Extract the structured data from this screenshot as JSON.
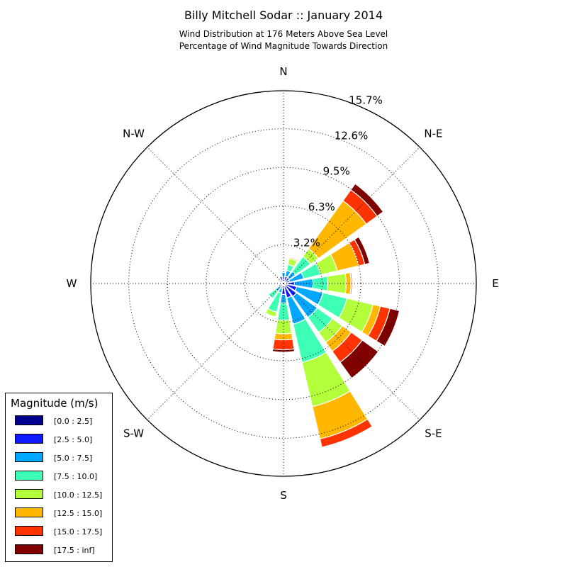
{
  "title": "Billy Mitchell Sodar :: January 2014",
  "subtitle_line1": "Wind Distribution at 176 Meters Above Sea Level",
  "subtitle_line2": "Percentage of Wind Magnitude Towards Direction",
  "legend": {
    "title": "Magnitude (m/s)",
    "items": [
      {
        "label": "[0.0 : 2.5]",
        "color": "#00008f"
      },
      {
        "label": "[2.5 : 5.0]",
        "color": "#0f1aff"
      },
      {
        "label": "[5.0 : 7.5]",
        "color": "#00a8ff"
      },
      {
        "label": "[7.5 : 10.0]",
        "color": "#3dffb5"
      },
      {
        "label": "[10.0 : 12.5]",
        "color": "#b3ff3b"
      },
      {
        "label": "[12.5 : 15.0]",
        "color": "#ffb700"
      },
      {
        "label": "[15.0 : 17.5]",
        "color": "#ff3300"
      },
      {
        "label": "[17.5 : inf]",
        "color": "#800000"
      }
    ]
  },
  "chart_data": {
    "type": "windrose",
    "direction_labels": [
      "N",
      "N-E",
      "E",
      "S-E",
      "S",
      "S-W",
      "W",
      "N-W"
    ],
    "radial_ticks": [
      "3.2%",
      "6.3%",
      "9.5%",
      "12.6%",
      "15.7%"
    ],
    "radial_tick_values": [
      3.15,
      6.3,
      9.45,
      12.6,
      15.7
    ],
    "rmax": 15.7,
    "bin_labels": [
      "[0.0 : 2.5]",
      "[2.5 : 5.0]",
      "[5.0 : 7.5]",
      "[7.5 : 10.0]",
      "[10.0 : 12.5]",
      "[12.5 : 15.0]",
      "[15.0 : 17.5]",
      "[17.5 : inf]"
    ],
    "directions_deg": [
      0,
      22.5,
      45,
      67.5,
      90,
      112.5,
      135,
      157.5,
      180,
      202.5,
      225,
      247.5,
      270,
      292.5,
      315,
      337.5
    ],
    "cumulative_percent": [
      [
        0.0,
        0.5,
        0.9,
        0.9,
        0.9,
        0.9,
        0.9,
        0.9
      ],
      [
        0.0,
        0.6,
        1.1,
        1.6,
        2.1,
        2.2,
        2.2,
        2.2
      ],
      [
        0.0,
        0.6,
        1.2,
        2.7,
        3.5,
        8.3,
        9.4,
        10.0
      ],
      [
        0.0,
        0.5,
        1.7,
        3.1,
        4.5,
        6.3,
        6.8,
        7.2
      ],
      [
        0.0,
        0.9,
        2.4,
        3.6,
        5.1,
        5.5,
        5.6,
        5.6
      ],
      [
        0.0,
        1.1,
        3.3,
        5.3,
        7.5,
        8.1,
        8.9,
        9.7
      ],
      [
        0.0,
        1.3,
        3.4,
        4.9,
        5.9,
        6.8,
        7.9,
        9.5
      ],
      [
        0.0,
        1.2,
        3.4,
        6.6,
        10.3,
        13.0,
        13.7,
        13.7
      ],
      [
        0.0,
        0.9,
        1.6,
        3.0,
        4.1,
        4.6,
        5.4,
        5.6
      ],
      [
        0.0,
        0.4,
        0.8,
        2.4,
        2.8,
        2.8,
        2.8,
        2.8
      ],
      [
        0.0,
        0.3,
        0.8,
        1.5,
        1.5,
        1.5,
        1.5,
        1.5
      ],
      [
        0.0,
        0.4,
        0.4,
        0.4,
        0.4,
        0.4,
        0.4,
        0.4
      ],
      [
        0.0,
        0.2,
        0.2,
        0.2,
        0.2,
        0.2,
        0.2,
        0.2
      ],
      [
        0.0,
        0.2,
        0.2,
        0.2,
        0.2,
        0.2,
        0.2,
        0.2
      ],
      [
        0.0,
        0.2,
        0.2,
        0.2,
        0.2,
        0.2,
        0.2,
        0.2
      ],
      [
        0.0,
        0.6,
        0.6,
        0.6,
        0.6,
        0.6,
        0.6,
        0.6
      ]
    ],
    "grid": true
  }
}
